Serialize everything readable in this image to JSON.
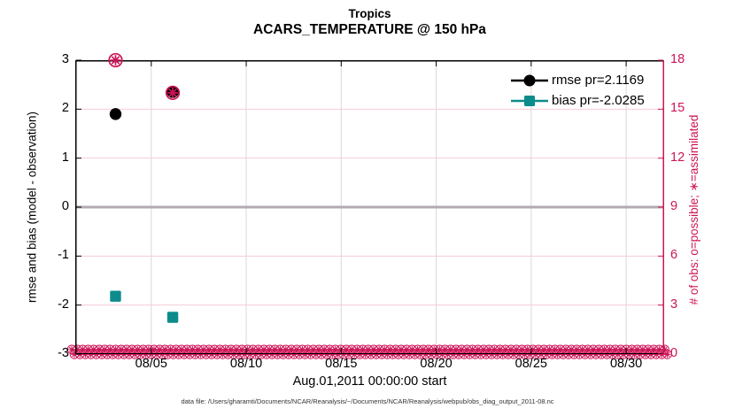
{
  "figure": {
    "title": "Tropics",
    "subtitle": "ACARS_TEMPERATURE @ 150 hPa",
    "footer": "data file: /Users/gharamti/Documents/NCAR/Reanalysis/~/Documents/NCAR/Reanalysis/webpub/obs_diag_output_2011-08.nc"
  },
  "colors": {
    "obs_pink": "#cc1456",
    "grid_pink": "#f6ccd7",
    "grid_gray": "#d9d9d9",
    "zero_line_gray": "#b3aab3",
    "teal": "#0e8b8b",
    "black": "#000000"
  },
  "legend": {
    "items": [
      {
        "label": "rmse pr=2.1169",
        "marker": "filled-circle",
        "color": "#000000"
      },
      {
        "label": "bias pr=-2.0285",
        "marker": "filled-square",
        "color": "#0e8b8b"
      }
    ]
  },
  "chart_data": {
    "type": "scatter",
    "title": "Tropics",
    "subtitle": "ACARS_TEMPERATURE @ 150 hPa",
    "x_axis": {
      "label": "Aug.01,2011 00:00:00 start",
      "start_day": 1,
      "end_day": 32,
      "ticks": [
        {
          "day": 5,
          "label": "08/05"
        },
        {
          "day": 10,
          "label": "08/10"
        },
        {
          "day": 15,
          "label": "08/15"
        },
        {
          "day": 20,
          "label": "08/20"
        },
        {
          "day": 25,
          "label": "08/25"
        },
        {
          "day": 30,
          "label": "08/30"
        }
      ]
    },
    "left_axis": {
      "label": "rmse and bias (model - observation)",
      "min": -3,
      "max": 3,
      "ticks": [
        3,
        2,
        1,
        0,
        -1,
        -2,
        -3
      ]
    },
    "right_axis": {
      "label": "# of obs: o=possible; ∗=assimilated",
      "min": 0,
      "max": 18,
      "ticks": [
        18,
        15,
        12,
        9,
        6,
        3,
        0
      ]
    },
    "zero_reference_line": 0,
    "series": [
      {
        "name": "rmse pr=2.1169",
        "axis": "left",
        "marker": "filled-circle",
        "color": "#000000",
        "points": [
          {
            "day": 3.12,
            "value": 1.9
          },
          {
            "day": 6.13,
            "value": 2.35
          }
        ]
      },
      {
        "name": "bias pr=-2.0285",
        "axis": "left",
        "marker": "filled-square",
        "color": "#0e8b8b",
        "points": [
          {
            "day": 3.12,
            "value": -1.82
          },
          {
            "day": 6.13,
            "value": -2.25
          }
        ]
      },
      {
        "name": "# of obs: o=possible; ∗=assimilated",
        "axis": "right",
        "marker": "circle-asterisk",
        "color": "#cc1456",
        "points": [
          {
            "day": 3.12,
            "value": 18
          },
          {
            "day": 6.13,
            "value": 16
          }
        ]
      }
    ],
    "zero_obs_band": {
      "axis": "right",
      "value": 0,
      "from_day": 1,
      "to_day": 32,
      "note": "dense overlapping row of pink circle-asterisk symbols (zero observations) along the bottom axis"
    }
  }
}
